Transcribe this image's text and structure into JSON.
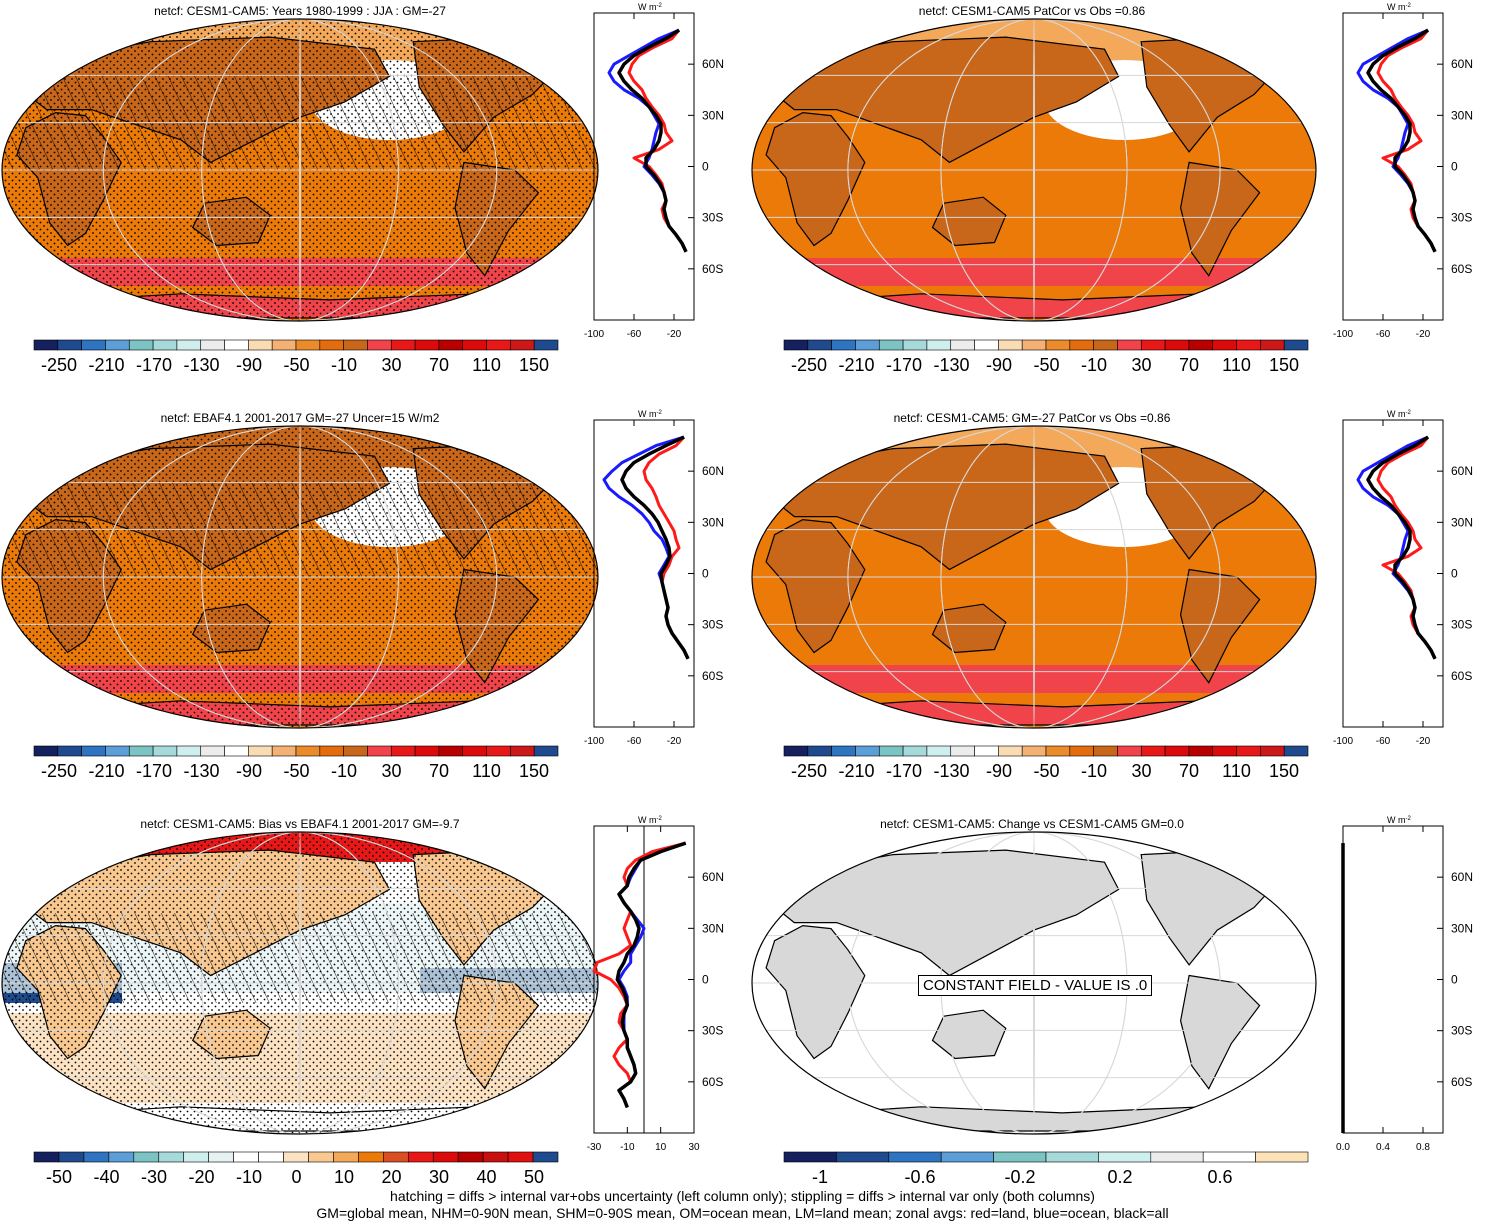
{
  "footer": {
    "line1": "hatching = diffs > internal var+obs uncertainty (left column only); stippling = diffs > internal var only (both columns)",
    "line2": "GM=global mean, NHM=0-90N mean, SHM=0-90S mean, OM=ocean mean, LM=land mean; zonal avgs: red=land, blue=ocean, black=all"
  },
  "colors": {
    "land": "#ff1a1a",
    "ocean": "#1a1aff",
    "all": "#000000",
    "map_main": "#ec7a08",
    "map_dark": "#c8661a",
    "map_light": "#f3a85a",
    "map_pale": "#f8d2a5",
    "map_red": "#f0434a",
    "gray_land": "#d8d8d8"
  },
  "chart_data": [
    {
      "type": "heatmap",
      "title": "netcf: CESM1-CAM5: Years 1980-1999 : JJA : GM=-27",
      "colorbar": {
        "labels": [
          "-250",
          "-210",
          "-170",
          "-130",
          "-90",
          "-50",
          "-10",
          "30",
          "70",
          "110",
          "150"
        ]
      },
      "zonal": {
        "unit": "W m",
        "unit_exp": "-2",
        "xticks": [
          "-100",
          "-60",
          "-20"
        ],
        "yticks": [
          "60N",
          "30N",
          "0",
          "30S",
          "60S"
        ],
        "xlim": [
          -100,
          0
        ],
        "lat": [
          80,
          75,
          70,
          65,
          60,
          55,
          50,
          45,
          40,
          35,
          30,
          25,
          20,
          15,
          10,
          5,
          0,
          -5,
          -10,
          -15,
          -20,
          -25,
          -30,
          -35,
          -40,
          -45,
          -50
        ],
        "land": [
          -15,
          -22,
          -40,
          -55,
          -62,
          -65,
          -60,
          -52,
          -48,
          -42,
          -35,
          -30,
          -28,
          -22,
          -35,
          -60,
          -45,
          -38,
          -32,
          -30,
          -28,
          -32,
          -30,
          -25,
          -18,
          -12,
          -8
        ],
        "ocean": [
          -15,
          -35,
          -50,
          -65,
          -80,
          -85,
          -80,
          -70,
          -55,
          -45,
          -40,
          -35,
          -38,
          -40,
          -42,
          -45,
          -50,
          -42,
          -35,
          -30,
          -28,
          -30,
          -28,
          -25,
          -18,
          -12,
          -8
        ],
        "all": [
          -15,
          -28,
          -45,
          -60,
          -70,
          -75,
          -70,
          -62,
          -52,
          -45,
          -38,
          -33,
          -33,
          -35,
          -40,
          -48,
          -48,
          -40,
          -34,
          -30,
          -28,
          -30,
          -28,
          -25,
          -18,
          -12,
          -8
        ]
      }
    },
    {
      "type": "heatmap",
      "title": "netcf: CESM1-CAM5 PatCor vs Obs =0.86",
      "colorbar": {
        "labels": [
          "-250",
          "-210",
          "-170",
          "-130",
          "-90",
          "-50",
          "-10",
          "30",
          "70",
          "110",
          "150"
        ]
      },
      "zonal": {
        "unit": "W m",
        "unit_exp": "-2",
        "xticks": [
          "-100",
          "-60",
          "-20"
        ],
        "yticks": [
          "60N",
          "30N",
          "0",
          "30S",
          "60S"
        ],
        "xlim": [
          -100,
          0
        ],
        "lat": [
          80,
          75,
          70,
          65,
          60,
          55,
          50,
          45,
          40,
          35,
          30,
          25,
          20,
          15,
          10,
          5,
          0,
          -5,
          -10,
          -15,
          -20,
          -25,
          -30,
          -35,
          -40,
          -45,
          -50
        ],
        "land": [
          -15,
          -22,
          -40,
          -55,
          -62,
          -65,
          -60,
          -52,
          -48,
          -42,
          -35,
          -30,
          -28,
          -22,
          -35,
          -60,
          -45,
          -38,
          -32,
          -30,
          -28,
          -32,
          -30,
          -25,
          -18,
          -12,
          -8
        ],
        "ocean": [
          -15,
          -35,
          -50,
          -65,
          -80,
          -85,
          -80,
          -70,
          -55,
          -45,
          -40,
          -35,
          -38,
          -40,
          -42,
          -45,
          -50,
          -42,
          -35,
          -30,
          -28,
          -30,
          -28,
          -25,
          -18,
          -12,
          -8
        ],
        "all": [
          -15,
          -28,
          -45,
          -60,
          -70,
          -75,
          -70,
          -62,
          -52,
          -45,
          -38,
          -33,
          -33,
          -35,
          -40,
          -48,
          -48,
          -40,
          -34,
          -30,
          -28,
          -30,
          -28,
          -25,
          -18,
          -12,
          -8
        ]
      }
    },
    {
      "type": "heatmap",
      "title": "netcf: EBAF4.1 2001-2017 GM=-27 Uncer=15 W/m2",
      "colorbar": {
        "labels": [
          "-250",
          "-210",
          "-170",
          "-130",
          "-90",
          "-50",
          "-10",
          "30",
          "70",
          "110",
          "150"
        ]
      },
      "zonal": {
        "unit": "W m",
        "unit_exp": "-2",
        "xticks": [
          "-100",
          "-60",
          "-20"
        ],
        "yticks": [
          "60N",
          "30N",
          "0",
          "30S",
          "60S"
        ],
        "xlim": [
          -100,
          0
        ],
        "lat": [
          80,
          75,
          70,
          65,
          60,
          55,
          50,
          45,
          40,
          35,
          30,
          25,
          20,
          15,
          10,
          5,
          0,
          -5,
          -10,
          -15,
          -20,
          -25,
          -30,
          -35,
          -40,
          -45,
          -50
        ],
        "land": [
          -10,
          -18,
          -35,
          -45,
          -50,
          -48,
          -42,
          -38,
          -35,
          -30,
          -25,
          -20,
          -18,
          -15,
          -22,
          -25,
          -30,
          -32,
          -30,
          -28,
          -26,
          -28,
          -26,
          -22,
          -16,
          -10,
          -6
        ],
        "ocean": [
          -10,
          -38,
          -55,
          -72,
          -82,
          -90,
          -85,
          -75,
          -62,
          -52,
          -45,
          -40,
          -32,
          -28,
          -25,
          -30,
          -35,
          -32,
          -30,
          -28,
          -26,
          -28,
          -26,
          -22,
          -16,
          -10,
          -6
        ],
        "all": [
          -10,
          -28,
          -45,
          -60,
          -68,
          -72,
          -68,
          -60,
          -50,
          -42,
          -36,
          -32,
          -28,
          -25,
          -24,
          -28,
          -33,
          -32,
          -30,
          -28,
          -26,
          -28,
          -26,
          -22,
          -16,
          -10,
          -6
        ]
      }
    },
    {
      "type": "heatmap",
      "title": "netcf: CESM1-CAM5: GM=-27 PatCor vs Obs =0.86",
      "colorbar": {
        "labels": [
          "-250",
          "-210",
          "-170",
          "-130",
          "-90",
          "-50",
          "-10",
          "30",
          "70",
          "110",
          "150"
        ]
      },
      "zonal": {
        "unit": "W m",
        "unit_exp": "-2",
        "xticks": [
          "-100",
          "-60",
          "-20"
        ],
        "yticks": [
          "60N",
          "30N",
          "0",
          "30S",
          "60S"
        ],
        "xlim": [
          -100,
          0
        ],
        "lat": [
          80,
          75,
          70,
          65,
          60,
          55,
          50,
          45,
          40,
          35,
          30,
          25,
          20,
          15,
          10,
          5,
          0,
          -5,
          -10,
          -15,
          -20,
          -25,
          -30,
          -35,
          -40,
          -45,
          -50
        ],
        "land": [
          -15,
          -22,
          -40,
          -55,
          -62,
          -65,
          -60,
          -52,
          -48,
          -42,
          -35,
          -30,
          -28,
          -22,
          -35,
          -60,
          -45,
          -38,
          -32,
          -30,
          -28,
          -32,
          -30,
          -25,
          -18,
          -12,
          -8
        ],
        "ocean": [
          -15,
          -35,
          -50,
          -65,
          -80,
          -85,
          -80,
          -70,
          -55,
          -45,
          -40,
          -35,
          -38,
          -40,
          -42,
          -45,
          -50,
          -42,
          -35,
          -30,
          -28,
          -30,
          -28,
          -25,
          -18,
          -12,
          -8
        ],
        "all": [
          -15,
          -28,
          -45,
          -60,
          -70,
          -75,
          -70,
          -62,
          -52,
          -45,
          -38,
          -33,
          -33,
          -35,
          -40,
          -48,
          -48,
          -40,
          -34,
          -30,
          -28,
          -30,
          -28,
          -25,
          -18,
          -12,
          -8
        ]
      }
    },
    {
      "type": "heatmap",
      "title": "netcf: CESM1-CAM5: Bias vs EBAF4.1 2001-2017 GM=-9.7",
      "colorbar": {
        "labels": [
          "-50",
          "-40",
          "-30",
          "-20",
          "-10",
          "0",
          "10",
          "20",
          "30",
          "40",
          "50"
        ]
      },
      "zonal": {
        "unit": "W m",
        "unit_exp": "-2",
        "xticks": [
          "-30",
          "-10",
          "10",
          "30"
        ],
        "yticks": [
          "60N",
          "30N",
          "0",
          "30S",
          "60S"
        ],
        "xlim": [
          -30,
          30
        ],
        "lat": [
          80,
          75,
          70,
          65,
          60,
          55,
          50,
          45,
          40,
          35,
          30,
          25,
          20,
          15,
          10,
          5,
          0,
          -5,
          -10,
          -15,
          -20,
          -25,
          -30,
          -35,
          -40,
          -45,
          -50,
          -55,
          -60,
          -65,
          -70,
          -75
        ],
        "land": [
          25,
          5,
          -5,
          -10,
          -12,
          -10,
          -15,
          -12,
          -8,
          -10,
          -12,
          -10,
          -8,
          -15,
          -28,
          -30,
          -20,
          -15,
          -12,
          -10,
          -14,
          -15,
          -12,
          -10,
          -15,
          -18,
          -15,
          -10,
          -8,
          -15,
          -12,
          -10
        ],
        "ocean": [
          25,
          10,
          -2,
          -5,
          -8,
          -10,
          -15,
          -12,
          -8,
          -4,
          0,
          -2,
          -5,
          -8,
          -8,
          -12,
          -15,
          -12,
          -10,
          -10,
          -12,
          -12,
          -12,
          -10,
          -10,
          -8,
          -6,
          -5,
          -8,
          -15,
          -12,
          -10
        ],
        "all": [
          25,
          10,
          -2,
          -6,
          -9,
          -10,
          -15,
          -12,
          -8,
          -5,
          -3,
          -4,
          -6,
          -10,
          -12,
          -15,
          -16,
          -13,
          -11,
          -10,
          -12,
          -13,
          -12,
          -10,
          -10,
          -8,
          -6,
          -5,
          -8,
          -15,
          -12,
          -10
        ]
      }
    },
    {
      "type": "heatmap",
      "title": "netcf: CESM1-CAM5: Change vs CESM1-CAM5 GM=0.0",
      "annotation": "CONSTANT FIELD - VALUE IS .0",
      "colorbar": {
        "labels": [
          "-1",
          "-0.6",
          "-0.2",
          "0.2",
          "0.6"
        ]
      },
      "zonal": {
        "unit": "W m",
        "unit_exp": "-2",
        "xticks": [
          "0.0",
          "0.4",
          "0.8"
        ],
        "yticks": [
          "60N",
          "30N",
          "0",
          "30S",
          "60S"
        ],
        "xlim": [
          0,
          1
        ],
        "lat": [
          80,
          -90
        ],
        "land": [
          0,
          0
        ],
        "ocean": [
          0,
          0
        ],
        "all": [
          0,
          0
        ]
      }
    }
  ]
}
